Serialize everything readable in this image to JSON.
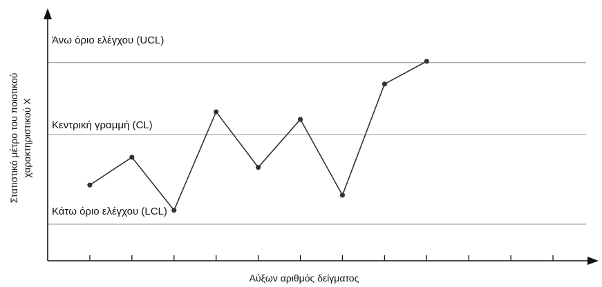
{
  "chart_data": {
    "type": "line",
    "title": "",
    "xlabel": "Αύξων αριθμός δείγματος",
    "ylabel_line1": "Στατιστικό μέτρο του ποιοτικού",
    "ylabel_line2": "χαρακτηριστικού X",
    "x": [
      1,
      2,
      3,
      4,
      5,
      6,
      7,
      8,
      9
    ],
    "xlim": [
      0,
      13
    ],
    "x_tick_count": 12,
    "ylim": [
      0,
      10
    ],
    "control_lines": [
      {
        "id": "ucl",
        "label": "Άνω όριο ελέγχου (UCL)",
        "value": 7.85
      },
      {
        "id": "cl",
        "label": "Κεντρική γραμμή (CL)",
        "value": 5.0
      },
      {
        "id": "lcl",
        "label": "Κάτω όριο ελέγχου (LCL)",
        "value": 1.45
      }
    ],
    "series": [
      {
        "values": [
          3.0,
          4.1,
          2.0,
          5.9,
          3.7,
          5.6,
          2.6,
          7.0,
          7.9
        ]
      }
    ],
    "grid": false,
    "legend": "none"
  },
  "colors": {
    "line": "#333333",
    "marker": "#333333",
    "control_line": "#aaaaaa",
    "axis": "#111111"
  }
}
